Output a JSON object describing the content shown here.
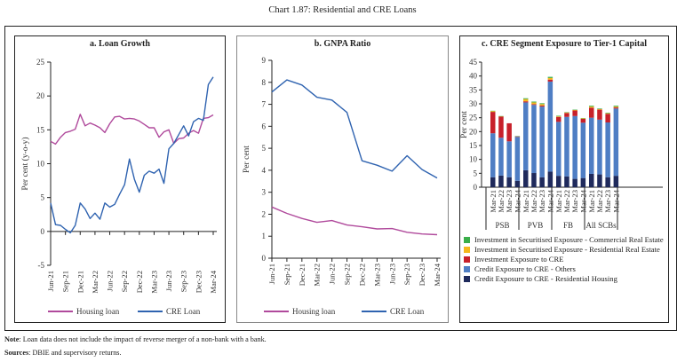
{
  "title": "Chart 1.87: Residential and CRE Loans",
  "note_label": "Note",
  "note_text": ": Loan data does not include the impact of reverse merger of a non-bank with a bank.",
  "sources_label": "Sources",
  "sources_text": ": DBIE and supervisory returns.",
  "colors": {
    "housing": "#b04a9c",
    "cre": "#2f63b0",
    "res_housing": "#1f2a5c",
    "cre_others": "#4f7ec4",
    "investment_cre": "#c8202a",
    "sec_residential": "#f5b81c",
    "sec_commercial": "#3aae4a"
  },
  "chart_data": [
    {
      "id": "a",
      "type": "line",
      "title": "a. Loan Growth",
      "xlabel": "",
      "ylabel": "Per cent (y-o-y)",
      "ylim": [
        -5,
        25
      ],
      "yticks": [
        -5,
        0,
        5,
        10,
        15,
        20,
        25
      ],
      "x_tick_labels": [
        "Jun-21",
        "Sep-21",
        "Dec-21",
        "Mar-22",
        "Jun-22",
        "Sep-22",
        "Dec-22",
        "Mar-23",
        "Jun-23",
        "Sep-23",
        "Dec-23",
        "Mar-24"
      ],
      "x_points": 34,
      "x_tick_every": 3,
      "grid": false,
      "legend": "bottom",
      "series": [
        {
          "name": "Housing loan",
          "color_key": "housing",
          "values": [
            13.3,
            12.9,
            13.9,
            14.6,
            14.8,
            15.1,
            17.3,
            15.6,
            16.0,
            15.7,
            15.3,
            14.6,
            15.9,
            16.9,
            17.0,
            16.6,
            16.7,
            16.6,
            16.3,
            15.8,
            15.3,
            15.3,
            13.9,
            14.7,
            15.0,
            13.0,
            13.7,
            13.8,
            14.5,
            14.9,
            14.5,
            16.7,
            16.8,
            17.2
          ]
        },
        {
          "name": "CRE Loan",
          "color_key": "cre",
          "values": [
            4.2,
            1.0,
            0.9,
            0.3,
            -0.2,
            0.9,
            4.2,
            3.3,
            1.9,
            2.7,
            1.8,
            4.2,
            3.6,
            4.0,
            5.5,
            6.9,
            10.7,
            7.7,
            5.8,
            8.3,
            8.9,
            8.6,
            9.2,
            7.1,
            12.2,
            13.0,
            14.3,
            15.6,
            14.1,
            16.2,
            16.7,
            16.4,
            21.7,
            22.8
          ]
        }
      ]
    },
    {
      "id": "b",
      "type": "line",
      "title": "b. GNPA Ratio",
      "xlabel": "",
      "ylabel": "Per cent",
      "ylim": [
        0,
        9
      ],
      "yticks": [
        0,
        1,
        2,
        3,
        4,
        5,
        6,
        7,
        8,
        9
      ],
      "x_tick_labels": [
        "Jun-21",
        "Sep-21",
        "Dec-21",
        "Mar-22",
        "Jun-22",
        "Sep-22",
        "Dec-22",
        "Mar-23",
        "Jun-23",
        "Sep-23",
        "Dec-23",
        "Mar-24"
      ],
      "x_points": 12,
      "x_tick_every": 1,
      "grid": false,
      "legend": "bottom",
      "series": [
        {
          "name": "Housing loan",
          "color_key": "housing",
          "values": [
            2.33,
            2.04,
            1.81,
            1.63,
            1.71,
            1.51,
            1.43,
            1.33,
            1.35,
            1.18,
            1.1,
            1.07
          ]
        },
        {
          "name": "CRE Loan",
          "color_key": "cre",
          "values": [
            7.56,
            8.11,
            7.88,
            7.32,
            7.19,
            6.63,
            4.43,
            4.23,
            3.96,
            4.66,
            4.03,
            3.65
          ]
        }
      ]
    },
    {
      "id": "c",
      "type": "bar",
      "stacked": true,
      "title": "c. CRE Segment Exposure to Tier-1 Capital",
      "xlabel": "",
      "ylabel": "Per cent",
      "ylim": [
        0,
        45
      ],
      "yticks": [
        0,
        5,
        10,
        15,
        20,
        25,
        30,
        35,
        40,
        45
      ],
      "groups": [
        {
          "name": "PSB",
          "categories": [
            "Mar-21",
            "Mar-22",
            "Mar-23",
            "Mar-24"
          ]
        },
        {
          "name": "PVB",
          "categories": [
            "Mar-21",
            "Mar-22",
            "Mar-23",
            "Mar-24"
          ]
        },
        {
          "name": "FB",
          "categories": [
            "Mar-21",
            "Mar-22",
            "Mar-23",
            "Mar-24"
          ]
        },
        {
          "name": "All SCBs",
          "categories": [
            "Mar-21",
            "Mar-22",
            "Mar-23",
            "Mar-24"
          ]
        }
      ],
      "legend": "bottom",
      "legend_order": [
        "sec_commercial",
        "sec_residential",
        "investment_cre",
        "cre_others",
        "res_housing"
      ],
      "series": [
        {
          "key": "res_housing",
          "name": "Credit Exposure to CRE - Residential Housing",
          "color_key": "res_housing",
          "values": [
            3.6,
            4.2,
            3.6,
            2.3,
            6.1,
            5.1,
            3.6,
            5.6,
            4.1,
            3.9,
            3.0,
            3.3,
            4.8,
            4.6,
            3.6,
            4.1
          ]
        },
        {
          "key": "cre_others",
          "name": "Credit Exposure to CRE - Others",
          "color_key": "cre_others",
          "values": [
            15.8,
            13.6,
            12.9,
            15.8,
            24.4,
            24.5,
            25.4,
            32.4,
            19.4,
            21.4,
            22.6,
            19.9,
            20.2,
            19.7,
            19.7,
            24.2
          ]
        },
        {
          "key": "investment_cre",
          "name": "Investment Exposure to CRE",
          "color_key": "investment_cre",
          "values": [
            7.7,
            7.6,
            6.5,
            0.2,
            0.4,
            0.3,
            0.4,
            0.7,
            1.8,
            1.4,
            2.0,
            1.4,
            3.6,
            3.6,
            3.1,
            0.4
          ]
        },
        {
          "key": "sec_residential",
          "name": "Investment in Securitised Exposure - Residential Real Estate",
          "color_key": "sec_residential",
          "values": [
            0.3,
            0.1,
            0.0,
            0.0,
            0.8,
            0.6,
            0.5,
            0.6,
            0.2,
            0.2,
            0.2,
            0.2,
            0.4,
            0.2,
            0.2,
            0.3
          ]
        },
        {
          "key": "sec_commercial",
          "name": "Investment in Securitised Exposure - Commercial Real Estate",
          "color_key": "sec_commercial",
          "values": [
            0.1,
            0.1,
            0.0,
            0.1,
            0.3,
            0.3,
            0.3,
            0.4,
            0.2,
            0.1,
            0.1,
            0.1,
            0.3,
            0.2,
            0.2,
            0.3
          ]
        }
      ]
    }
  ]
}
